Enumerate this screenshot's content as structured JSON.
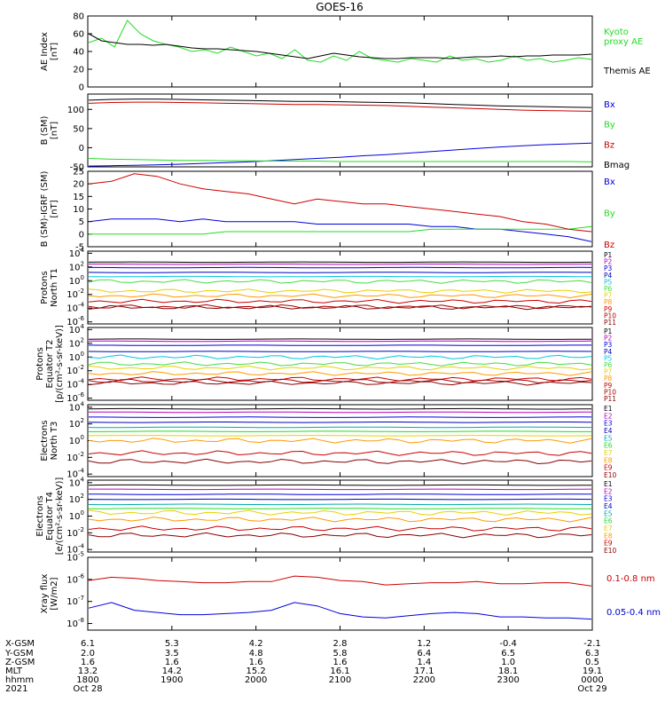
{
  "title": "GOES-16",
  "colors": {
    "black": "#000000",
    "green": "#22dd22",
    "blue": "#0000dd",
    "red": "#cc0000",
    "orange": "#ff9900",
    "yellow": "#e6d200",
    "cyan": "#00c8e0",
    "lightgreen": "#44dd44",
    "navy": "#0000bb",
    "purple": "#7700aa",
    "maroon": "#aa0000",
    "teal": "#00aaaa",
    "gold": "#ffcc00",
    "magenta": "#bb00bb",
    "darkred": "#880000"
  },
  "chart_data": [
    {
      "type": "line",
      "ylabel": "AE Index\n[nT]",
      "ylim": [
        0,
        80
      ],
      "yticks": [
        "0",
        "20",
        "40",
        "60",
        "80"
      ],
      "log": false,
      "series": [
        {
          "name": "Kyoto\nproxy AE",
          "color": "#22dd22",
          "values": [
            50,
            55,
            45,
            75,
            60,
            52,
            48,
            45,
            40,
            42,
            38,
            45,
            40,
            35,
            38,
            32,
            42,
            30,
            28,
            35,
            30,
            40,
            32,
            30,
            28,
            32,
            30,
            28,
            35,
            30,
            32,
            28,
            30,
            35,
            30,
            32,
            28,
            30,
            33,
            31
          ]
        },
        {
          "name": "Themis AE",
          "color": "#000000",
          "values": [
            60,
            52,
            50,
            48,
            48,
            47,
            48,
            46,
            44,
            43,
            43,
            42,
            41,
            40,
            38,
            36,
            34,
            32,
            35,
            38,
            36,
            34,
            33,
            32,
            32,
            33,
            33,
            33,
            32,
            33,
            34,
            34,
            35,
            34,
            35,
            35,
            36,
            36,
            36,
            37
          ]
        }
      ]
    },
    {
      "type": "line",
      "ylabel": "B (SM)\n[nT]",
      "ylim": [
        -50,
        140
      ],
      "yticks": [
        "-50",
        "0",
        "50",
        "100"
      ],
      "log": false,
      "series": [
        {
          "name": "Bx",
          "color": "#0000dd",
          "values": [
            -48,
            -47,
            -46,
            -45,
            -43,
            -41,
            -39,
            -37,
            -34,
            -31,
            -28,
            -25,
            -21,
            -18,
            -14,
            -10,
            -6,
            -2,
            2,
            5,
            8,
            10,
            12
          ]
        },
        {
          "name": "By",
          "color": "#22dd22",
          "values": [
            -28,
            -30,
            -31,
            -32,
            -33,
            -33,
            -34,
            -34,
            -35,
            -35,
            -35,
            -36,
            -36,
            -36,
            -36,
            -36,
            -36,
            -36,
            -36,
            -36,
            -36,
            -36,
            -37
          ]
        },
        {
          "name": "Bz",
          "color": "#cc0000",
          "values": [
            116,
            118,
            119,
            119,
            118,
            117,
            116,
            115,
            114,
            113,
            113,
            112,
            111,
            110,
            108,
            106,
            104,
            102,
            100,
            98,
            97,
            96,
            95
          ]
        },
        {
          "name": "Bmag",
          "color": "#000000",
          "values": [
            124,
            126,
            127,
            127,
            126,
            125,
            124,
            123,
            122,
            121,
            121,
            120,
            119,
            118,
            117,
            115,
            113,
            111,
            109,
            108,
            107,
            106,
            105
          ]
        }
      ]
    },
    {
      "type": "line",
      "ylabel": "B (SM)-IGRF (SM)\n[nT]",
      "ylim": [
        -5,
        25
      ],
      "yticks": [
        "-5",
        "0",
        "5",
        "10",
        "15",
        "20",
        "25"
      ],
      "log": false,
      "series": [
        {
          "name": "Bx",
          "color": "#0000dd",
          "values": [
            5,
            6,
            6,
            6,
            5,
            6,
            5,
            5,
            5,
            5,
            4,
            4,
            4,
            4,
            4,
            3,
            3,
            2,
            2,
            1,
            0,
            -1,
            -3
          ]
        },
        {
          "name": "By",
          "color": "#22dd22",
          "values": [
            0,
            0,
            0,
            0,
            0,
            0,
            1,
            1,
            1,
            1,
            1,
            1,
            1,
            1,
            1,
            2,
            2,
            2,
            2,
            2,
            2,
            2,
            3
          ]
        },
        {
          "name": "Bz",
          "color": "#cc0000",
          "values": [
            20,
            21,
            24,
            23,
            20,
            18,
            17,
            16,
            14,
            12,
            14,
            13,
            12,
            12,
            11,
            10,
            9,
            8,
            7,
            5,
            4,
            2,
            1
          ]
        }
      ]
    },
    {
      "type": "line",
      "ylabel": "Protons\nNorth T1",
      "log": true,
      "yticks": [
        "10^4",
        "10^2",
        "10^0",
        "10^-2",
        "10^-4",
        "10^-6"
      ],
      "series": [
        {
          "name": "P1",
          "color": "#000000",
          "level": 2.7
        },
        {
          "name": "P2",
          "color": "#bb00bb",
          "level": 2.4
        },
        {
          "name": "P3",
          "color": "#0000dd",
          "level": 1.9
        },
        {
          "name": "P4",
          "color": "#0000bb",
          "level": 1.2
        },
        {
          "name": "P5",
          "color": "#00c8e0",
          "level": 0.6
        },
        {
          "name": "P6",
          "color": "#44dd44",
          "level": -0.1
        },
        {
          "name": "P7",
          "color": "#e6d200",
          "level": -1.5
        },
        {
          "name": "P8",
          "color": "#ff9900",
          "level": -2.2
        },
        {
          "name": "P9",
          "color": "#cc0000",
          "level": -3.0
        },
        {
          "name": "P10",
          "color": "#aa0000",
          "level": -3.8
        },
        {
          "name": "P11",
          "color": "#880000",
          "level": -3.9
        }
      ]
    },
    {
      "type": "line",
      "ylabel": "Protons\nEquator T2\n[p/(cm²-s-sr-keV)]",
      "log": true,
      "yticks": [
        "10^4",
        "10^2",
        "10^0",
        "10^-2",
        "10^-4",
        "10^-6"
      ],
      "series": [
        {
          "name": "P1",
          "color": "#000000",
          "level": 2.6
        },
        {
          "name": "P2",
          "color": "#bb00bb",
          "level": 2.3
        },
        {
          "name": "P3",
          "color": "#0000dd",
          "level": 1.7
        },
        {
          "name": "P4",
          "color": "#0000bb",
          "level": 0.8
        },
        {
          "name": "P5",
          "color": "#00c8e0",
          "level": 0.0
        },
        {
          "name": "P6",
          "color": "#44dd44",
          "level": -1.0
        },
        {
          "name": "P7",
          "color": "#e6d200",
          "level": -1.6
        },
        {
          "name": "P8",
          "color": "#ff9900",
          "level": -2.4
        },
        {
          "name": "P9",
          "color": "#cc0000",
          "level": -3.2
        },
        {
          "name": "P10",
          "color": "#aa0000",
          "level": -3.5
        },
        {
          "name": "P11",
          "color": "#880000",
          "level": -3.8
        }
      ]
    },
    {
      "type": "line",
      "ylabel": "Electrons\nNorth T3",
      "log": true,
      "yticks": [
        "10^4",
        "10^2",
        "10^0",
        "10^-2",
        "10^-4"
      ],
      "series": [
        {
          "name": "E1",
          "color": "#000000",
          "level": 3.8
        },
        {
          "name": "E2",
          "color": "#bb00bb",
          "level": 3.4
        },
        {
          "name": "E3",
          "color": "#0000dd",
          "level": 2.8
        },
        {
          "name": "E4",
          "color": "#0000bb",
          "level": 2.2
        },
        {
          "name": "E5",
          "color": "#00aaaa",
          "level": 1.6
        },
        {
          "name": "E6",
          "color": "#22dd22",
          "level": 1.1
        },
        {
          "name": "E7",
          "color": "#e6d200",
          "level": 0.6
        },
        {
          "name": "E8",
          "color": "#ff9900",
          "level": 0.0
        },
        {
          "name": "E9",
          "color": "#cc0000",
          "level": -1.5
        },
        {
          "name": "E10",
          "color": "#880000",
          "level": -2.5
        }
      ]
    },
    {
      "type": "line",
      "ylabel": "Electrons\nEquator T4\n[e/(cm²-s-sr-keV)]",
      "log": true,
      "yticks": [
        "10^4",
        "10^2",
        "10^0",
        "10^-2",
        "10^-4"
      ],
      "series": [
        {
          "name": "E1",
          "color": "#000000",
          "level": 3.7
        },
        {
          "name": "E2",
          "color": "#bb00bb",
          "level": 3.2
        },
        {
          "name": "E3",
          "color": "#0000dd",
          "level": 2.6
        },
        {
          "name": "E4",
          "color": "#0000bb",
          "level": 2.0
        },
        {
          "name": "E5",
          "color": "#00aaaa",
          "level": 1.4
        },
        {
          "name": "E6",
          "color": "#22dd22",
          "level": 0.9
        },
        {
          "name": "E7",
          "color": "#e6d200",
          "level": 0.4
        },
        {
          "name": "E8",
          "color": "#ff9900",
          "level": -0.4
        },
        {
          "name": "E9",
          "color": "#cc0000",
          "level": -1.5
        },
        {
          "name": "E10",
          "color": "#880000",
          "level": -2.3
        }
      ]
    },
    {
      "type": "line",
      "ylabel": "Xray flux\n[W/m2]",
      "log": true,
      "yticks": [
        "10^-5",
        "10^-6",
        "10^-7",
        "10^-8"
      ],
      "series": [
        {
          "name": "0.1-0.8 nm",
          "color": "#cc0000",
          "values": [
            -6.05,
            -5.9,
            -5.95,
            -6.05,
            -6.1,
            -6.15,
            -6.15,
            -6.1,
            -6.1,
            -5.85,
            -5.9,
            -6.05,
            -6.1,
            -6.25,
            -6.2,
            -6.15,
            -6.15,
            -6.1,
            -6.2,
            -6.2,
            -6.15,
            -6.15,
            -6.3
          ]
        },
        {
          "name": "0.05-0.4 nm",
          "color": "#0000dd",
          "values": [
            -7.3,
            -7.05,
            -7.4,
            -7.5,
            -7.6,
            -7.6,
            -7.55,
            -7.5,
            -7.4,
            -7.05,
            -7.2,
            -7.55,
            -7.7,
            -7.75,
            -7.65,
            -7.55,
            -7.5,
            -7.55,
            -7.7,
            -7.7,
            -7.75,
            -7.75,
            -7.8
          ]
        }
      ]
    }
  ],
  "axis_table": {
    "row_labels": [
      "X-GSM",
      "Y-GSM",
      "Z-GSM",
      "MLT",
      "hhmm",
      "2021"
    ],
    "columns": [
      {
        "values": [
          "6.1",
          "2.0",
          "1.6",
          "13.2",
          "1800",
          "Oct 28"
        ]
      },
      {
        "values": [
          "5.3",
          "3.5",
          "1.6",
          "14.2",
          "1900",
          ""
        ]
      },
      {
        "values": [
          "4.2",
          "4.8",
          "1.6",
          "15.2",
          "2000",
          ""
        ]
      },
      {
        "values": [
          "2.8",
          "5.8",
          "1.6",
          "16.1",
          "2100",
          ""
        ]
      },
      {
        "values": [
          "1.2",
          "6.4",
          "1.4",
          "17.1",
          "2200",
          ""
        ]
      },
      {
        "values": [
          "-0.4",
          "6.5",
          "1.0",
          "18.1",
          "2300",
          ""
        ]
      },
      {
        "values": [
          "-2.1",
          "6.3",
          "0.5",
          "19.1",
          "0000",
          "Oct 29"
        ]
      }
    ]
  }
}
